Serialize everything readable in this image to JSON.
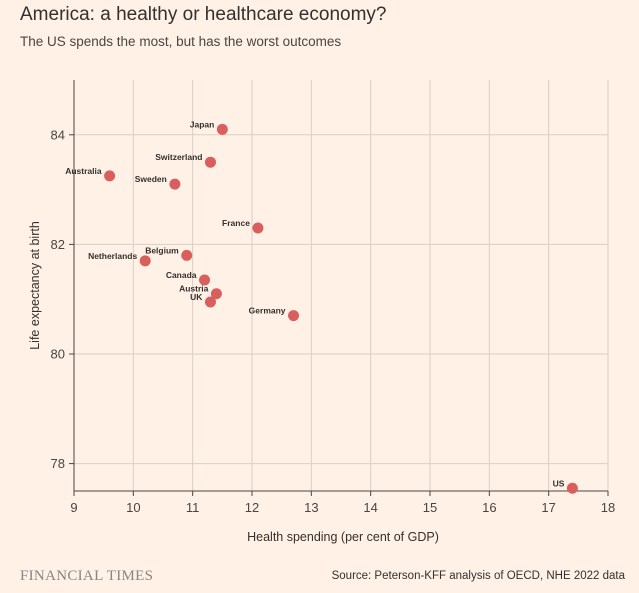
{
  "header": {
    "title": "America: a healthy or healthcare economy?",
    "subtitle": "The US spends the most, but has the worst outcomes"
  },
  "footer": {
    "brand": "FINANCIAL TIMES",
    "source": "Source: Peterson-KFF analysis of OECD, NHE 2022 data"
  },
  "chart_data": {
    "type": "scatter",
    "xlabel": "Health spending (per cent of GDP)",
    "ylabel": "Life expectancy at birth",
    "xlim": [
      9,
      18
    ],
    "ylim": [
      77.5,
      85
    ],
    "xticks": [
      9,
      10,
      11,
      12,
      13,
      14,
      15,
      16,
      17,
      18
    ],
    "yticks": [
      78,
      80,
      82,
      84
    ],
    "grid": true,
    "colors": {
      "point": "#D95F5F",
      "grid": "#D9CFC6",
      "axis": "#4A4542"
    },
    "points": [
      {
        "label": "Japan",
        "x": 11.5,
        "y": 84.1
      },
      {
        "label": "Switzerland",
        "x": 11.3,
        "y": 83.5
      },
      {
        "label": "Australia",
        "x": 9.6,
        "y": 83.25
      },
      {
        "label": "Sweden",
        "x": 10.7,
        "y": 83.1
      },
      {
        "label": "France",
        "x": 12.1,
        "y": 82.3
      },
      {
        "label": "Belgium",
        "x": 10.9,
        "y": 81.8
      },
      {
        "label": "Netherlands",
        "x": 10.2,
        "y": 81.7
      },
      {
        "label": "Canada",
        "x": 11.2,
        "y": 81.35
      },
      {
        "label": "Austria",
        "x": 11.4,
        "y": 81.1
      },
      {
        "label": "UK",
        "x": 11.3,
        "y": 80.95
      },
      {
        "label": "Germany",
        "x": 12.7,
        "y": 80.7
      },
      {
        "label": "US",
        "x": 17.4,
        "y": 77.55
      }
    ]
  }
}
